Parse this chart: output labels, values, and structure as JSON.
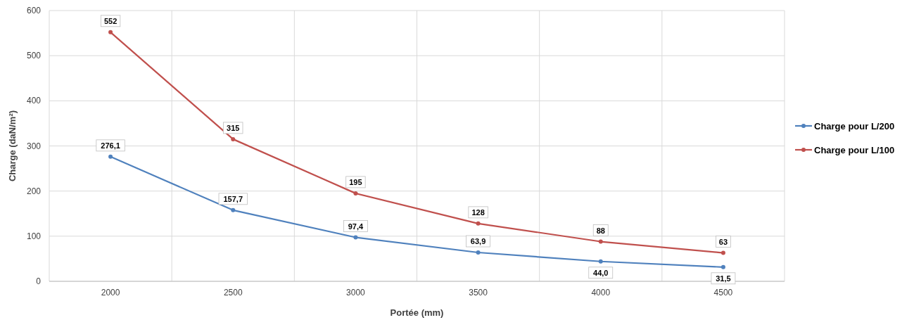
{
  "chart_data": {
    "type": "line",
    "xlabel": "Portée (mm)",
    "ylabel": "Charge (daN/m²)",
    "categories": [
      "2000",
      "2500",
      "3000",
      "3500",
      "4000",
      "4500"
    ],
    "series": [
      {
        "name": "Charge pour L/200",
        "color": "#4f81bd",
        "values": [
          276.1,
          157.7,
          97.4,
          63.9,
          44.0,
          31.5
        ],
        "value_labels": [
          "276,1",
          "157,7",
          "97,4",
          "63,9",
          "44,0",
          "31,5"
        ]
      },
      {
        "name": "Charge pour L/100",
        "color": "#c0504d",
        "values": [
          552,
          315,
          195,
          128,
          88,
          63
        ],
        "value_labels": [
          "552",
          "315",
          "195",
          "128",
          "88",
          "63"
        ]
      }
    ],
    "ylim": [
      0,
      600
    ],
    "yticks": [
      0,
      100,
      200,
      300,
      400,
      500,
      600
    ],
    "grid": true,
    "legend": "right",
    "marker": "circle",
    "line_style": "solid"
  }
}
